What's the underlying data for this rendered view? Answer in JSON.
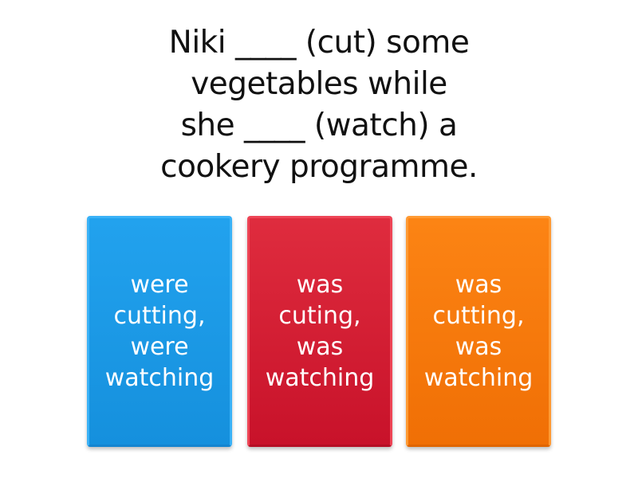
{
  "question": {
    "lines": [
      "Niki ____ (cut) some",
      "vegetables while",
      "she ____ (watch) a",
      "cookery programme."
    ]
  },
  "answers": [
    {
      "label": "were cutting, were watching",
      "color": "#1e9be6"
    },
    {
      "label": "was cuting, was watching",
      "color": "#d81f35"
    },
    {
      "label": "was cutting, was watching",
      "color": "#f97a0b"
    }
  ]
}
